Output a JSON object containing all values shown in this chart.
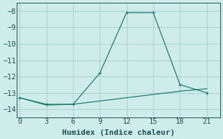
{
  "line1_x": [
    0,
    3,
    6,
    9,
    12,
    15,
    18,
    21
  ],
  "line1_y": [
    -13.3,
    -13.7,
    -13.7,
    -11.8,
    -8.1,
    -8.1,
    -12.5,
    -13.0
  ],
  "line2_x": [
    0,
    3,
    6,
    9,
    12,
    15,
    18,
    21
  ],
  "line2_y": [
    -13.3,
    -13.75,
    -13.7,
    -13.5,
    -13.3,
    -13.1,
    -12.9,
    -12.75
  ],
  "line_color": "#1a7a6e",
  "bg_color": "#ceecea",
  "grid_color": "#aed4d0",
  "xlabel": "Humidex (Indice chaleur)",
  "ylim": [
    -14.5,
    -7.5
  ],
  "xlim": [
    -0.3,
    22.5
  ],
  "xticks": [
    0,
    3,
    6,
    9,
    12,
    15,
    18,
    21
  ],
  "yticks": [
    -8,
    -9,
    -10,
    -11,
    -12,
    -13,
    -14
  ],
  "font_color": "#1a5050",
  "xlabel_fontsize": 8,
  "tick_fontsize": 7.5
}
